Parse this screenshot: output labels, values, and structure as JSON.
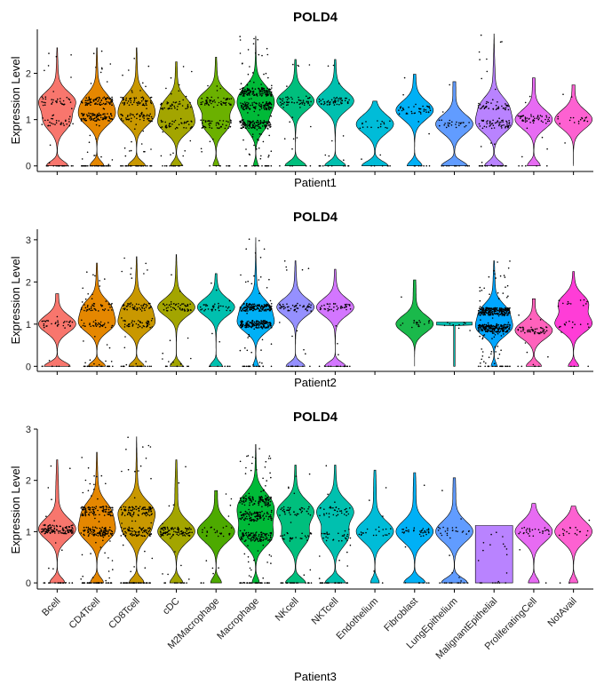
{
  "chart_data": [
    {
      "type": "violin",
      "title": "POLD4",
      "ylabel": "Expression Level",
      "xlabel": "Patient1",
      "ylim": [
        -0.12,
        2.95
      ],
      "yticks": [
        0,
        1,
        2
      ],
      "show_category_labels": false,
      "categories": [
        {
          "name": "Bcell",
          "color": "#F8766D",
          "max": 2.55,
          "modes": [
            1.4,
            0.95
          ],
          "zero": 0.55,
          "n": 90
        },
        {
          "name": "CD4Tcell",
          "color": "#E58700",
          "max": 2.55,
          "modes": [
            1.05,
            1.4
          ],
          "zero": 0.4,
          "n": 230
        },
        {
          "name": "CD8Tcell",
          "color": "#C99800",
          "max": 2.55,
          "modes": [
            1.05,
            1.4
          ],
          "zero": 0.5,
          "n": 170
        },
        {
          "name": "cDC",
          "color": "#A3A500",
          "max": 2.25,
          "modes": [
            0.9,
            1.3
          ],
          "zero": 0.3,
          "n": 110
        },
        {
          "name": "M2Macrophage",
          "color": "#6BB100",
          "max": 2.35,
          "modes": [
            1.4,
            0.9
          ],
          "zero": 0.15,
          "n": 120
        },
        {
          "name": "Macrophage",
          "color": "#00BA38",
          "max": 2.8,
          "modes": [
            1.3,
            0.9,
            1.6
          ],
          "zero": 0.15,
          "n": 420
        },
        {
          "name": "NKcell",
          "color": "#00BF7D",
          "max": 2.3,
          "modes": [
            1.4
          ],
          "zero": 0.5,
          "n": 70
        },
        {
          "name": "NKTcell",
          "color": "#00C0AF",
          "max": 2.3,
          "modes": [
            1.4
          ],
          "zero": 0.5,
          "n": 70
        },
        {
          "name": "Endothelium",
          "color": "#00BCD8",
          "max": 1.4,
          "modes": [
            0.9
          ],
          "zero": 0.6,
          "n": 25
        },
        {
          "name": "Fibroblast",
          "color": "#00B0F6",
          "max": 1.98,
          "modes": [
            1.2
          ],
          "zero": 0.35,
          "n": 50
        },
        {
          "name": "LungEpithelium",
          "color": "#619CFF",
          "max": 1.82,
          "modes": [
            0.9
          ],
          "zero": 0.6,
          "n": 40
        },
        {
          "name": "MalignantEpithelial",
          "color": "#B983FF",
          "max": 2.85,
          "modes": [
            0.9,
            1.3
          ],
          "zero": 0.5,
          "n": 130
        },
        {
          "name": "ProliferatingCell",
          "color": "#E76BF3",
          "max": 1.9,
          "modes": [
            1.0
          ],
          "zero": 0.3,
          "n": 60
        },
        {
          "name": "NotAvail",
          "color": "#FD61D1",
          "max": 1.75,
          "modes": [
            1.0
          ],
          "zero": 0.0,
          "n": 20
        }
      ]
    },
    {
      "type": "violin",
      "title": "POLD4",
      "ylabel": "Expression Level",
      "xlabel": "Patient2",
      "ylim": [
        -0.12,
        3.25
      ],
      "yticks": [
        0,
        1,
        2,
        3
      ],
      "show_category_labels": false,
      "categories": [
        {
          "name": "Bcell",
          "color": "#F8766D",
          "max": 1.72,
          "modes": [
            1.0
          ],
          "zero": 0.6,
          "n": 40
        },
        {
          "name": "CD4Tcell",
          "color": "#E58700",
          "max": 2.45,
          "modes": [
            1.0,
            1.4
          ],
          "zero": 0.45,
          "n": 120
        },
        {
          "name": "CD8Tcell",
          "color": "#C99800",
          "max": 2.6,
          "modes": [
            1.0,
            1.4
          ],
          "zero": 0.4,
          "n": 130
        },
        {
          "name": "cDC",
          "color": "#A3A500",
          "max": 2.65,
          "modes": [
            1.4
          ],
          "zero": 0.3,
          "n": 70
        },
        {
          "name": "M2Macrophage",
          "color": "#00C0AF",
          "max": 2.2,
          "modes": [
            1.4
          ],
          "zero": 0.3,
          "n": 45
        },
        {
          "name": "Macrophage",
          "color": "#00B0F6",
          "max": 3.05,
          "modes": [
            1.0,
            1.4
          ],
          "zero": 0.15,
          "n": 350
        },
        {
          "name": "NKcell",
          "color": "#9590FF",
          "max": 2.5,
          "modes": [
            1.4
          ],
          "zero": 0.45,
          "n": 70
        },
        {
          "name": "NKTcell",
          "color": "#D376FF",
          "max": 2.3,
          "modes": [
            1.4
          ],
          "zero": 0.5,
          "n": 60
        },
        {
          "name": "Endothelium",
          "color": "#FFFFFF",
          "max": 0,
          "modes": [],
          "zero": 0,
          "n": 0
        },
        {
          "name": "Fibroblast",
          "color": "#1AB94B",
          "max": 2.05,
          "modes": [
            1.0
          ],
          "zero": 0.0,
          "n": 20
        },
        {
          "name": "LungEpithelium",
          "color": "#00BFB2",
          "max": 1.05,
          "modes": [
            1.0
          ],
          "zero": 0.0,
          "n": 10,
          "tiny": true
        },
        {
          "name": "MalignantEpithelial",
          "color": "#00A5FF",
          "max": 2.5,
          "modes": [
            0.9,
            1.3
          ],
          "zero": 0.15,
          "n": 480
        },
        {
          "name": "ProliferatingCell",
          "color": "#FF62BC",
          "max": 1.6,
          "modes": [
            0.85
          ],
          "zero": 0.35,
          "n": 60
        },
        {
          "name": "NotAvail",
          "color": "#FF3DD7",
          "max": 2.25,
          "modes": [
            1.0,
            1.5
          ],
          "zero": 0.25,
          "n": 30
        }
      ]
    },
    {
      "type": "violin",
      "title": "POLD4",
      "ylabel": "Expression Level",
      "xlabel": "Patient3",
      "ylim": [
        -0.12,
        3.0
      ],
      "yticks": [
        0,
        1,
        2,
        3
      ],
      "show_category_labels": true,
      "categories": [
        {
          "name": "Bcell",
          "color": "#F8766D",
          "max": 2.4,
          "modes": [
            1.05
          ],
          "zero": 0.35,
          "n": 140
        },
        {
          "name": "CD4Tcell",
          "color": "#E58700",
          "max": 2.55,
          "modes": [
            1.0,
            1.4
          ],
          "zero": 0.35,
          "n": 260
        },
        {
          "name": "CD8Tcell",
          "color": "#C99800",
          "max": 2.85,
          "modes": [
            1.4,
            1.0
          ],
          "zero": 0.4,
          "n": 220
        },
        {
          "name": "cDC",
          "color": "#A3A500",
          "max": 2.4,
          "modes": [
            1.0
          ],
          "zero": 0.3,
          "n": 110
        },
        {
          "name": "M2Macrophage",
          "color": "#4DAA00",
          "max": 1.8,
          "modes": [
            1.0
          ],
          "zero": 0.25,
          "n": 35
        },
        {
          "name": "Macrophage",
          "color": "#00BA38",
          "max": 2.7,
          "modes": [
            0.9,
            1.3,
            1.6
          ],
          "zero": 0.2,
          "n": 380
        },
        {
          "name": "NKcell",
          "color": "#00BF7D",
          "max": 2.3,
          "modes": [
            1.4,
            0.9
          ],
          "zero": 0.5,
          "n": 90
        },
        {
          "name": "NKTcell",
          "color": "#00C0AF",
          "max": 2.3,
          "modes": [
            1.4,
            0.9
          ],
          "zero": 0.5,
          "n": 90
        },
        {
          "name": "Endothelium",
          "color": "#00BCD8",
          "max": 2.2,
          "modes": [
            1.0
          ],
          "zero": 0.2,
          "n": 25
        },
        {
          "name": "Fibroblast",
          "color": "#00B0F6",
          "max": 2.15,
          "modes": [
            1.0
          ],
          "zero": 0.5,
          "n": 40
        },
        {
          "name": "LungEpithelium",
          "color": "#619CFF",
          "max": 2.05,
          "modes": [
            1.0
          ],
          "zero": 0.6,
          "n": 40
        },
        {
          "name": "MalignantEpithelial",
          "color": "#B983FF",
          "max": 1.12,
          "modes": [],
          "zero": 1.0,
          "n": 20,
          "flat": true
        },
        {
          "name": "ProliferatingCell",
          "color": "#E76BF3",
          "max": 1.55,
          "modes": [
            1.0
          ],
          "zero": 0.25,
          "n": 30
        },
        {
          "name": "NotAvail",
          "color": "#FD61D1",
          "max": 1.5,
          "modes": [
            1.0
          ],
          "zero": 0.2,
          "n": 20
        }
      ]
    }
  ]
}
